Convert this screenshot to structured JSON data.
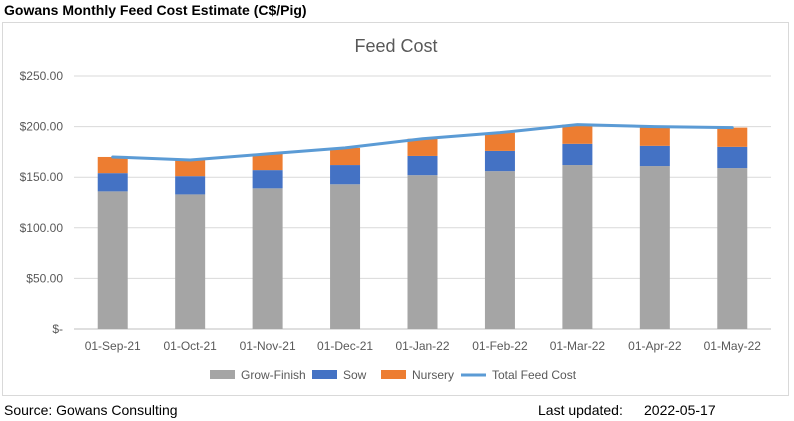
{
  "header": {
    "title": "Gowans Monthly Feed Cost Estimate (C$/Pig)"
  },
  "footer": {
    "source": "Source: Gowans Consulting",
    "updated_label": "Last updated:",
    "updated_value": "2022-05-17"
  },
  "chart_data": {
    "type": "bar",
    "stacked": true,
    "title": "Feed Cost",
    "xlabel": "",
    "ylabel": "",
    "categories": [
      "01-Sep-21",
      "01-Oct-21",
      "01-Nov-21",
      "01-Dec-21",
      "01-Jan-22",
      "01-Feb-22",
      "01-Mar-22",
      "01-Apr-22",
      "01-May-22"
    ],
    "ylim": [
      0,
      250
    ],
    "yticks": [
      0,
      50,
      100,
      150,
      200,
      250
    ],
    "ytick_labels": [
      "$-",
      "$50.00",
      "$100.00",
      "$150.00",
      "$200.00",
      "$250.00"
    ],
    "grid": true,
    "legend_position": "bottom",
    "series": [
      {
        "name": "Grow-Finish",
        "kind": "bar",
        "color": "#a5a5a5",
        "values": [
          136,
          133,
          139,
          143,
          152,
          156,
          162,
          161,
          159
        ]
      },
      {
        "name": "Sow",
        "kind": "bar",
        "color": "#4472c4",
        "values": [
          18,
          18,
          18,
          19,
          19,
          20,
          21,
          20,
          21
        ]
      },
      {
        "name": "Nursery",
        "kind": "bar",
        "color": "#ed7d31",
        "values": [
          16,
          16,
          16,
          17,
          17,
          18,
          19,
          19,
          19
        ]
      },
      {
        "name": "Total Feed Cost",
        "kind": "line",
        "color": "#5b9bd5",
        "values": [
          170,
          167,
          173,
          179,
          188,
          194,
          202,
          200,
          199
        ]
      }
    ]
  }
}
